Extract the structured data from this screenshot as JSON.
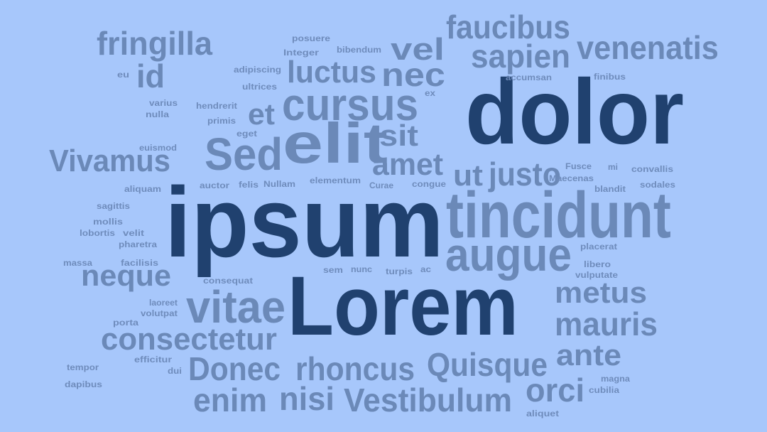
{
  "background": "#a7c7fb",
  "colors": {
    "dark": "#20416f",
    "medium": "#6b89b8",
    "light": "#6f8cbc"
  },
  "words": {
    "lorem": "Lorem",
    "ipsum": "ipsum",
    "dolor": "dolor",
    "tincidunt": "tincidunt",
    "augue": "augue",
    "elit": "elit",
    "sed": "Sed",
    "cursus": "cursus",
    "faucibus": "faucibus",
    "venenatis": "venenatis",
    "sapien": "sapien",
    "vel": "vel",
    "fringilla": "fringilla",
    "id": "id",
    "luctus": "luctus",
    "nec": "nec",
    "et": "et",
    "sit": "sit",
    "amet": "amet",
    "ut": "ut",
    "justo": "justo",
    "vivamus": "Vivamus",
    "vitae": "vitae",
    "neque": "neque",
    "consectetur": "consectetur",
    "metus": "metus",
    "mauris": "mauris",
    "ante": "ante",
    "donec": "Donec",
    "rhoncus": "rhoncus",
    "quisque": "Quisque",
    "orci": "orci",
    "enim": "enim",
    "nisi": "nisi",
    "vestibulum": "Vestibulum",
    "posuere": "posuere",
    "integer": "Integer",
    "bibendum": "bibendum",
    "eu": "eu",
    "adipiscing": "adipiscing",
    "ultrices": "ultrices",
    "accumsan": "accumsan",
    "ex": "ex",
    "finibus": "finibus",
    "varius": "varius",
    "nulla": "nulla",
    "hendrerit": "hendrerit",
    "primis": "primis",
    "eget": "eget",
    "euismod": "euismod",
    "aliquam": "aliquam",
    "auctor": "auctor",
    "felis": "felis",
    "nullam": "Nullam",
    "elementum": "elementum",
    "curae": "Curae",
    "congue": "congue",
    "fusce": "Fusce",
    "mi": "mi",
    "convallis": "convallis",
    "maecenas": "Maecenas",
    "blandit": "blandit",
    "sodales": "sodales",
    "sagittis": "sagittis",
    "mollis": "mollis",
    "lobortis": "lobortis",
    "velit": "velit",
    "pharetra": "pharetra",
    "placerat": "placerat",
    "massa": "massa",
    "facilisis": "facilisis",
    "sem": "sem",
    "nunc": "nunc",
    "turpis": "turpis",
    "ac": "ac",
    "libero": "libero",
    "vulputate": "vulputate",
    "consequat": "consequat",
    "laoreet": "laoreet",
    "volutpat": "volutpat",
    "porta": "porta",
    "tempor": "tempor",
    "efficitur": "efficitur",
    "dui": "dui",
    "magna": "magna",
    "cubilia": "cubilia",
    "dapibus": "dapibus",
    "aliquet": "aliquet"
  }
}
